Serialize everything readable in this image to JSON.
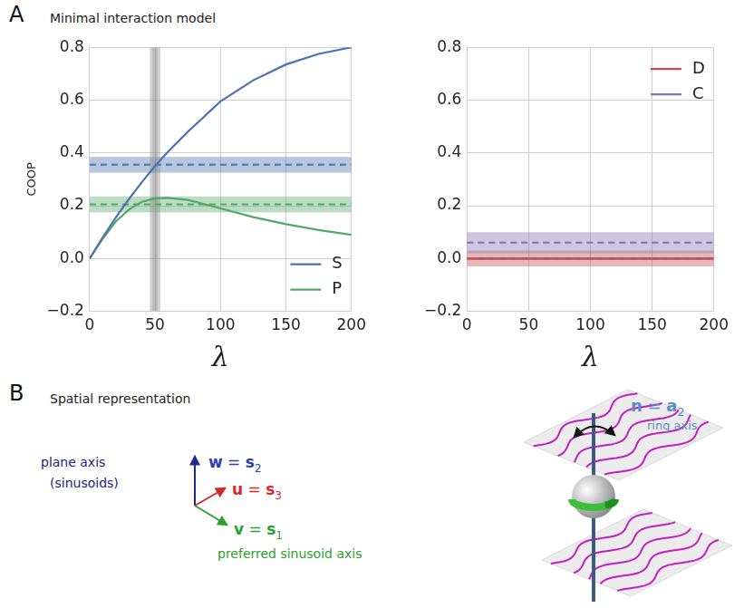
{
  "chart_data": [
    {
      "type": "line",
      "x_label": "λ",
      "y_label": "COOP",
      "xlim": [
        0,
        200
      ],
      "xticks": [
        0,
        50,
        100,
        150,
        200
      ],
      "ylim": [
        -0.2,
        0.8
      ],
      "yticks": [
        {
          "value": -0.2,
          "label": "−0.2"
        },
        {
          "value": 0,
          "label": "0.0"
        },
        {
          "value": 0.2,
          "label": "0.2"
        },
        {
          "value": 0.4,
          "label": "0.4"
        },
        {
          "value": 0.6,
          "label": "0.6"
        },
        {
          "value": 0.8,
          "label": "0.8"
        }
      ],
      "grid": true,
      "legend": "lower right",
      "x": [
        0,
        10,
        20,
        30,
        40,
        50,
        60,
        75,
        100,
        125,
        150,
        175,
        200
      ],
      "highlight_x": [
        46,
        54
      ],
      "series": [
        {
          "name": "S",
          "color": "#4c72b0",
          "line_style": "solid",
          "values": [
            0,
            0.08,
            0.155,
            0.225,
            0.29,
            0.35,
            0.405,
            0.48,
            0.595,
            0.675,
            0.735,
            0.775,
            0.8
          ],
          "reference": 0.355,
          "reference_band": [
            0.325,
            0.385
          ]
        },
        {
          "name": "P",
          "color": "#55a868",
          "line_style": "solid",
          "values": [
            0,
            0.075,
            0.14,
            0.185,
            0.215,
            0.228,
            0.23,
            0.222,
            0.19,
            0.157,
            0.13,
            0.108,
            0.09
          ],
          "reference": 0.205,
          "reference_band": [
            0.175,
            0.235
          ]
        }
      ]
    },
    {
      "type": "line",
      "x_label": "λ",
      "xlim": [
        0,
        200
      ],
      "xticks": [
        0,
        50,
        100,
        150,
        200
      ],
      "ylim": [
        -0.2,
        0.8
      ],
      "yticks": [
        {
          "value": -0.2,
          "label": "−0.2"
        },
        {
          "value": 0,
          "label": "0.0"
        },
        {
          "value": 0.2,
          "label": "0.2"
        },
        {
          "value": 0.4,
          "label": "0.4"
        },
        {
          "value": 0.6,
          "label": "0.6"
        },
        {
          "value": 0.8,
          "label": "0.8"
        }
      ],
      "grid": true,
      "legend": "upper right",
      "x": [
        0,
        10,
        20,
        30,
        40,
        50,
        60,
        75,
        100,
        125,
        150,
        175,
        200
      ],
      "series": [
        {
          "name": "D",
          "color": "#c44e52",
          "line_style": "solid",
          "values": [
            0,
            0,
            0,
            0,
            0,
            0,
            0,
            0,
            0,
            0,
            0,
            0,
            0
          ],
          "reference": 0,
          "reference_band": [
            -0.03,
            0.03
          ]
        },
        {
          "name": "C",
          "color": "#8172b2",
          "line_style": "solid",
          "values": [
            0,
            0,
            0,
            0,
            0,
            0,
            0,
            0,
            0,
            0,
            0,
            0,
            0
          ],
          "reference": 0.06,
          "reference_band": [
            0.02,
            0.1
          ]
        }
      ]
    }
  ],
  "panel_a": {
    "letter": "A",
    "title": "Minimal interaction model"
  },
  "panel_b": {
    "letter": "B",
    "title": "Spatial representation",
    "vectors": [
      {
        "lhs": "w",
        "sign": "=",
        "rhs": "s",
        "sub": "2",
        "color": "#2b3fb0",
        "arrow_color": "#1f2a8a",
        "caption_lines": [
          "plane axis",
          "(sinusoids)"
        ],
        "caption_color": "#1a237e"
      },
      {
        "lhs": "u",
        "sign": "=",
        "rhs": "s",
        "sub": "3",
        "color": "#d62728",
        "arrow_color": "#d62728"
      },
      {
        "lhs": "v",
        "sign": "=",
        "rhs": "s",
        "sub": "1",
        "color": "#2ca02c",
        "arrow_color": "#2ca02c",
        "caption_lines": [
          "preferred sinusoid axis"
        ],
        "caption_color": "#2ca02c"
      }
    ],
    "ring_axis": {
      "lhs": "n",
      "sign": "=",
      "rhs": "a",
      "sub": "2",
      "color": "#5b8cc8",
      "caption_lines": [
        "ring axis"
      ],
      "caption_color": "#5b8cc8"
    }
  }
}
